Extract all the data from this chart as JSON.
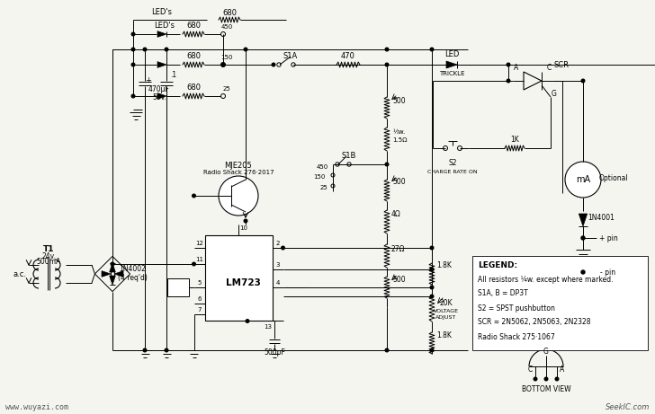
{
  "bg_color": "#f5f5f0",
  "watermark_left": "www.wuyazi.com",
  "watermark_right": "SeekIC.com",
  "legend_lines": [
    "LEGEND:",
    "All resistors ¼w. except where marked.",
    "S1A, B = DP3T",
    "S2 = SPST pushbutton",
    "SCR = 2N5062, 2N5063, 2N2328",
    "Radio Shack 275·1067"
  ]
}
